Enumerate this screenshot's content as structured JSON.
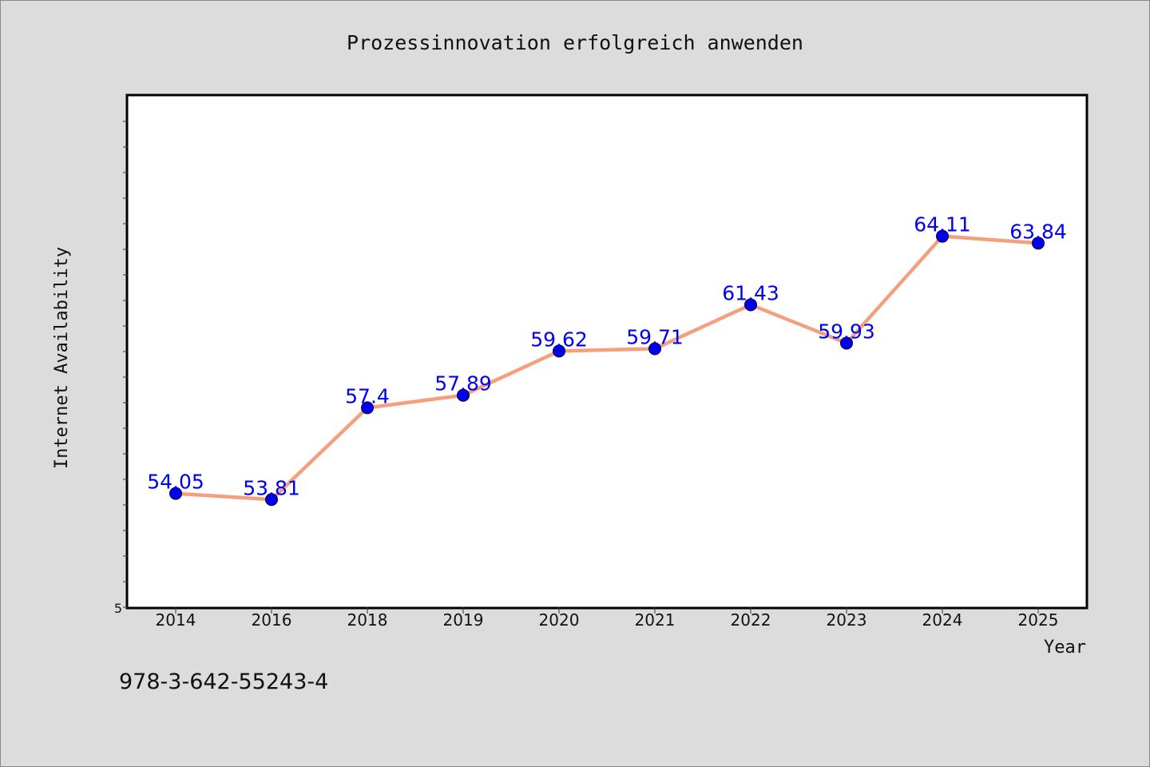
{
  "chart_data": {
    "type": "line",
    "title": "Prozessinnovation erfolgreich anwenden",
    "xlabel": "Year",
    "ylabel": "Internet Availability",
    "categories": [
      "2014",
      "2016",
      "2018",
      "2019",
      "2020",
      "2021",
      "2022",
      "2023",
      "2024",
      "2025"
    ],
    "series": [
      {
        "values": [
          54.05,
          53.81,
          57.4,
          57.89,
          59.62,
          59.71,
          61.43,
          59.93,
          64.11,
          63.84
        ],
        "labels": [
          "54.05",
          "53.81",
          "57.4",
          "57.89",
          "59.62",
          "59.71",
          "61.43",
          "59.93",
          "64.11",
          "63.84"
        ]
      }
    ],
    "ylim": [
      49.6,
      69.6
    ],
    "y_tick_label": "5",
    "grid": false,
    "colors": {
      "line": "#f4a07f",
      "marker": "#0000ee",
      "data_label": "#0000ee",
      "page_background": "#dcdcdc",
      "plot_background": "#ffffff"
    }
  },
  "footer": {
    "isbn": "978-3-642-55243-4"
  }
}
